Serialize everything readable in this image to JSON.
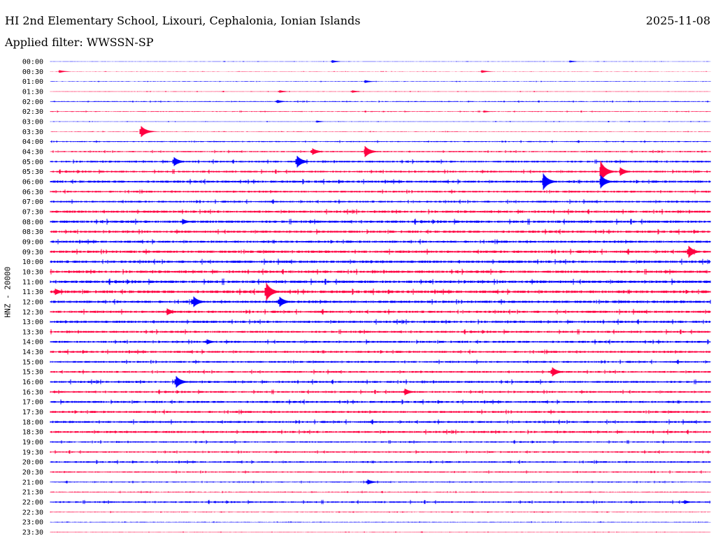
{
  "header": {
    "title": "HI 2nd Elementary School, Lixouri, Cephalonia, Ionian Islands",
    "date": "2025-11-08",
    "filter_label": "Applied filter: WWSSN-SP"
  },
  "chart_data": {
    "type": "line",
    "title": "HI 2nd Elementary School, Lixouri, Cephalonia, Ionian Islands",
    "ylabel": "HNZ - 20000",
    "xlabel": "",
    "trace_colors": [
      "#0000ff",
      "#ff0040"
    ],
    "trace_labels": [
      "00:00",
      "00:30",
      "01:00",
      "01:30",
      "02:00",
      "02:30",
      "03:00",
      "03:30",
      "04:00",
      "04:30",
      "05:00",
      "05:30",
      "06:00",
      "06:30",
      "07:00",
      "07:30",
      "08:00",
      "08:30",
      "09:00",
      "09:30",
      "10:00",
      "10:30",
      "11:00",
      "11:30",
      "12:00",
      "12:30",
      "13:00",
      "13:30",
      "14:00",
      "14:30",
      "15:00",
      "15:30",
      "16:00",
      "16:30",
      "17:00",
      "17:30",
      "18:00",
      "18:30",
      "19:00",
      "19:30",
      "20:00",
      "20:30",
      "21:00",
      "21:30",
      "22:00",
      "22:30",
      "23:00",
      "23:30"
    ],
    "noise_level": [
      0.2,
      0.2,
      0.3,
      0.3,
      0.5,
      0.4,
      0.3,
      0.3,
      0.6,
      0.7,
      1.0,
      1.0,
      1.2,
      1.0,
      1.0,
      1.2,
      1.3,
      1.2,
      1.2,
      1.3,
      1.3,
      1.3,
      1.4,
      1.4,
      1.3,
      1.2,
      1.2,
      1.1,
      1.1,
      1.1,
      1.0,
      1.0,
      1.1,
      1.0,
      1.1,
      1.1,
      1.1,
      1.1,
      0.8,
      0.8,
      0.9,
      0.7,
      0.6,
      0.5,
      0.9,
      0.4,
      0.4,
      0.3
    ],
    "events": [
      {
        "trace": "00:00",
        "minute": 12.8,
        "amplitude": 2
      },
      {
        "trace": "00:00",
        "minute": 23.6,
        "amplitude": 1.5
      },
      {
        "trace": "00:30",
        "minute": 0.4,
        "amplitude": 2
      },
      {
        "trace": "00:30",
        "minute": 19.6,
        "amplitude": 2
      },
      {
        "trace": "01:00",
        "minute": 14.3,
        "amplitude": 2
      },
      {
        "trace": "01:30",
        "minute": 10.4,
        "amplitude": 2
      },
      {
        "trace": "01:30",
        "minute": 13.7,
        "amplitude": 2
      },
      {
        "trace": "02:00",
        "minute": 10.3,
        "amplitude": 2.5
      },
      {
        "trace": "02:30",
        "minute": 19.7,
        "amplitude": 1.5
      },
      {
        "trace": "03:00",
        "minute": 12.1,
        "amplitude": 1.5
      },
      {
        "trace": "03:30",
        "minute": 4.1,
        "amplitude": 9
      },
      {
        "trace": "04:30",
        "minute": 11.9,
        "amplitude": 5
      },
      {
        "trace": "04:30",
        "minute": 14.3,
        "amplitude": 8
      },
      {
        "trace": "05:00",
        "minute": 5.6,
        "amplitude": 7
      },
      {
        "trace": "05:00",
        "minute": 11.2,
        "amplitude": 9
      },
      {
        "trace": "05:30",
        "minute": 25.0,
        "amplitude": 16
      },
      {
        "trace": "05:30",
        "minute": 25.9,
        "amplitude": 6
      },
      {
        "trace": "06:00",
        "minute": 22.4,
        "amplitude": 12
      },
      {
        "trace": "06:00",
        "minute": 25.0,
        "amplitude": 10
      },
      {
        "trace": "08:00",
        "minute": 6.0,
        "amplitude": 4
      },
      {
        "trace": "09:30",
        "minute": 29.0,
        "amplitude": 9
      },
      {
        "trace": "11:30",
        "minute": 9.8,
        "amplitude": 14
      },
      {
        "trace": "11:30",
        "minute": 0.2,
        "amplitude": 5
      },
      {
        "trace": "12:00",
        "minute": 6.5,
        "amplitude": 8
      },
      {
        "trace": "12:00",
        "minute": 10.4,
        "amplitude": 8
      },
      {
        "trace": "12:30",
        "minute": 5.3,
        "amplitude": 5
      },
      {
        "trace": "14:00",
        "minute": 7.1,
        "amplitude": 4
      },
      {
        "trace": "15:30",
        "minute": 22.8,
        "amplitude": 7
      },
      {
        "trace": "16:00",
        "minute": 5.7,
        "amplitude": 9
      },
      {
        "trace": "16:30",
        "minute": 16.1,
        "amplitude": 5
      },
      {
        "trace": "21:00",
        "minute": 14.4,
        "amplitude": 4
      },
      {
        "trace": "22:00",
        "minute": 28.8,
        "amplitude": 3
      }
    ],
    "grid": false
  }
}
